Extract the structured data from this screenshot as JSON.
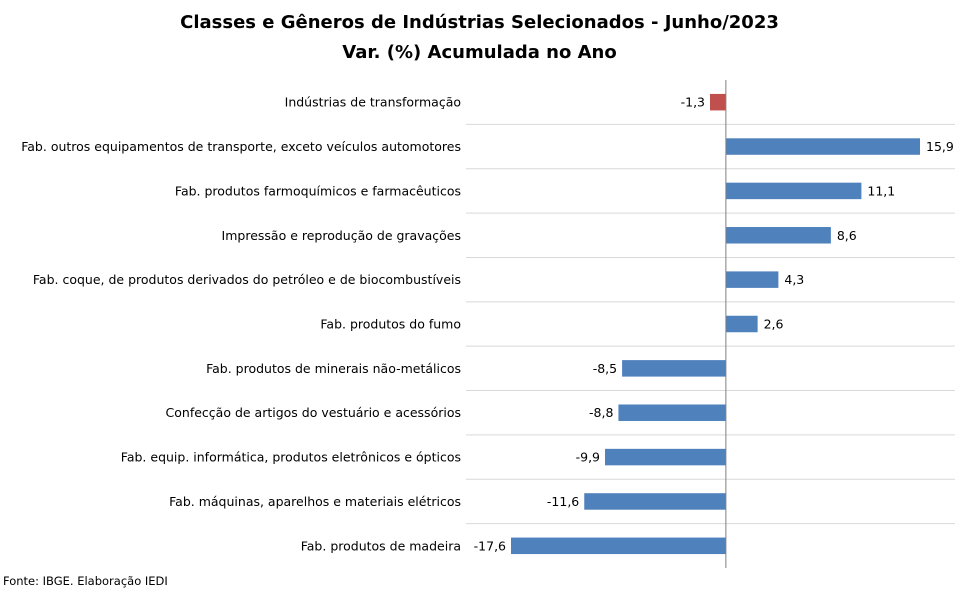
{
  "chart_data": {
    "type": "bar",
    "orientation": "horizontal",
    "title": "Classes e Gêneros de Indústrias Selecionados - Junho/2023",
    "subtitle": "Var. (%) Acumulada no Ano",
    "categories": [
      "Indústrias de transformação",
      "Fab. outros equipamentos de transporte, exceto veículos automotores",
      "Fab. produtos farmoquímicos e farmacêuticos",
      "Impressão e reprodução de gravações",
      "Fab. coque, de produtos derivados do petróleo e de biocombustíveis",
      "Fab. produtos do fumo",
      "Fab. produtos de minerais não-metálicos",
      "Confecção de artigos do vestuário e acessórios",
      "Fab. equip. informática, produtos eletrônicos e ópticos",
      "Fab. máquinas, aparelhos e materiais elétricos",
      "Fab. produtos de madeira"
    ],
    "values": [
      -1.3,
      15.9,
      11.1,
      8.6,
      4.3,
      2.6,
      -8.5,
      -8.8,
      -9.9,
      -11.6,
      -17.6
    ],
    "value_labels": [
      "-1,3",
      "15,9",
      "11,1",
      "8,6",
      "4,3",
      "2,6",
      "-8,5",
      "-8,8",
      "-9,9",
      "-11,6",
      "-17,6"
    ],
    "bar_colors": [
      "#c0504d",
      "#4f81bd",
      "#4f81bd",
      "#4f81bd",
      "#4f81bd",
      "#4f81bd",
      "#4f81bd",
      "#4f81bd",
      "#4f81bd",
      "#4f81bd",
      "#4f81bd"
    ],
    "xlim": [
      -17.6,
      15.9
    ],
    "grid": true,
    "legend": "none"
  },
  "footer": {
    "source": "Fonte: IBGE. Elaboração IEDI"
  }
}
